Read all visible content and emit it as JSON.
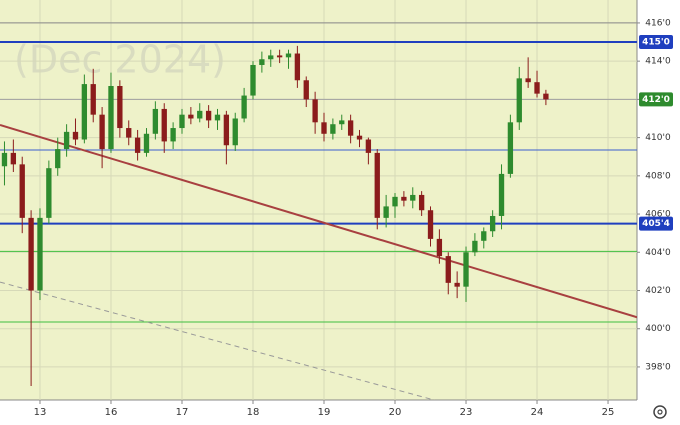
{
  "chart_data": {
    "type": "candlestick",
    "watermark": "(Dec 2024)",
    "xlim": [
      -0.563,
      8.408
    ],
    "xticks": [
      {
        "value": 0,
        "label": "13"
      },
      {
        "value": 1,
        "label": "16"
      },
      {
        "value": 2,
        "label": "17"
      },
      {
        "value": 3,
        "label": "18"
      },
      {
        "value": 4,
        "label": "19"
      },
      {
        "value": 5,
        "label": "20"
      },
      {
        "value": 6,
        "label": "23"
      },
      {
        "value": 7,
        "label": "24"
      },
      {
        "value": 8,
        "label": "25"
      }
    ],
    "ylim": [
      396.27,
      417.2
    ],
    "yticks": [
      {
        "value": 398,
        "label": "398'0"
      },
      {
        "value": 400,
        "label": "400'0"
      },
      {
        "value": 402,
        "label": "402'0"
      },
      {
        "value": 404,
        "label": "404'0"
      },
      {
        "value": 406,
        "label": "406'0"
      },
      {
        "value": 408,
        "label": "408'0"
      },
      {
        "value": 410,
        "label": "410'0"
      },
      {
        "value": 412,
        "label": "412'0"
      },
      {
        "value": 414,
        "label": "414'0"
      },
      {
        "value": 416,
        "label": "416'0"
      }
    ],
    "grid": true,
    "up_color": "#2e8b2e",
    "down_color": "#8b1c1c",
    "x": [
      -0.5,
      -0.375,
      -0.25,
      -0.125,
      0,
      0.125,
      0.25,
      0.375,
      0.5,
      0.625,
      0.75,
      0.875,
      1,
      1.125,
      1.25,
      1.375,
      1.5,
      1.625,
      1.75,
      1.875,
      2,
      2.125,
      2.25,
      2.375,
      2.5,
      2.625,
      2.75,
      2.875,
      3,
      3.125,
      3.25,
      3.375,
      3.5,
      3.625,
      3.75,
      3.875,
      4,
      4.125,
      4.25,
      4.375,
      4.5,
      4.625,
      4.75,
      4.875,
      5,
      5.125,
      5.25,
      5.375,
      5.5,
      5.625,
      5.75,
      5.875,
      6,
      6.125,
      6.25,
      6.375,
      6.5,
      6.625,
      6.75,
      6.875,
      7,
      7.125
    ],
    "open": [
      408.5,
      409.2,
      408.6,
      405.8,
      402,
      405.8,
      408.4,
      409.4,
      410.3,
      409.9,
      412.8,
      411.2,
      409.4,
      412.7,
      410.5,
      410,
      409.2,
      410.2,
      411.5,
      409.8,
      410.5,
      411.2,
      411,
      411.4,
      410.9,
      411.2,
      409.6,
      411,
      412.2,
      413.8,
      414.1,
      414.3,
      414.2,
      414.4,
      413,
      412,
      410.8,
      410.2,
      410.7,
      410.9,
      410.1,
      409.9,
      409.2,
      405.8,
      406.4,
      406.9,
      406.7,
      407,
      406.2,
      404.7,
      403.8,
      402.4,
      402.2,
      404,
      404.6,
      405.1,
      405.9,
      408.1,
      410.8,
      413.1,
      412.9,
      412.3
    ],
    "high": [
      409.8,
      409.9,
      409,
      406.2,
      406.3,
      408.8,
      410,
      410.7,
      411,
      413.3,
      413.6,
      411.6,
      413.4,
      413,
      410.9,
      410.4,
      410.5,
      411.9,
      411.8,
      410.8,
      411.5,
      411.6,
      411.8,
      411.7,
      411.5,
      411.4,
      411.3,
      412.6,
      414,
      414.5,
      414.6,
      414.6,
      414.6,
      414.8,
      413.2,
      412.4,
      411.3,
      411,
      411.2,
      411.2,
      410.4,
      410,
      409.4,
      407,
      407.1,
      407.2,
      407.4,
      407.2,
      406.4,
      405.2,
      404,
      403,
      404.3,
      405,
      405.3,
      406.2,
      408.6,
      411.2,
      413.7,
      414.2,
      413.5,
      412.5
    ],
    "low": [
      407.5,
      408.2,
      405,
      397,
      401.5,
      405.5,
      408,
      409,
      409.6,
      409.7,
      410.8,
      408.4,
      409.2,
      410,
      409.6,
      408.8,
      409,
      409.9,
      409.2,
      409.4,
      410.2,
      410.7,
      410.8,
      410.5,
      410.4,
      408.6,
      409.3,
      410.8,
      412,
      413.4,
      413.7,
      413.9,
      413.6,
      412.6,
      411.6,
      410.2,
      409.8,
      409.9,
      410.4,
      409.7,
      409.5,
      408.6,
      405.2,
      405.3,
      405.8,
      406.4,
      406.3,
      405.9,
      404.3,
      403.4,
      401.8,
      401.6,
      401.4,
      403.8,
      404.2,
      404.8,
      405.2,
      407.9,
      410.4,
      412.6,
      412.1,
      411.7
    ],
    "close": [
      409.2,
      408.6,
      405.8,
      402,
      405.8,
      408.4,
      409.4,
      410.3,
      409.9,
      412.8,
      411.2,
      409.4,
      412.7,
      410.5,
      410,
      409.2,
      410.2,
      411.5,
      409.8,
      410.5,
      411.2,
      411,
      411.4,
      410.9,
      411.2,
      409.6,
      411,
      412.2,
      413.8,
      414.1,
      414.3,
      414.2,
      414.4,
      413,
      412,
      410.8,
      410.2,
      410.7,
      410.9,
      410.1,
      409.9,
      409.2,
      405.8,
      406.4,
      406.9,
      406.7,
      407,
      406.2,
      404.7,
      403.8,
      402.4,
      402.2,
      404,
      404.6,
      405.1,
      405.9,
      408.1,
      410.8,
      413.1,
      412.9,
      412.3,
      412
    ],
    "levels": [
      {
        "value": 416,
        "color": "#8a8a8a",
        "width": 1
      },
      {
        "value": 415,
        "color": "#1f3fbf",
        "width": 2,
        "label": "415'0"
      },
      {
        "value": 412,
        "color": "#a0a0a0",
        "width": 1,
        "label": "412'0",
        "label_color": "#2e8b2e"
      },
      {
        "value": 409.35,
        "color": "#3a5fd0",
        "width": 1
      },
      {
        "value": 405.5,
        "color": "#1f3fbf",
        "width": 2,
        "label": "405'4"
      },
      {
        "value": 404.05,
        "color": "#3fbf3f",
        "width": 1
      },
      {
        "value": 400.35,
        "color": "#3fbf3f",
        "width": 1
      }
    ],
    "trendlines": [
      {
        "points": [
          [
            -0.563,
            410.66
          ],
          [
            8.408,
            400.6
          ]
        ],
        "color": "#a84040",
        "width": 2
      },
      {
        "points": [
          [
            -0.563,
            402.44
          ],
          [
            5.56,
            396.26
          ]
        ],
        "color": "#999999",
        "width": 1,
        "dashed": true
      }
    ]
  }
}
